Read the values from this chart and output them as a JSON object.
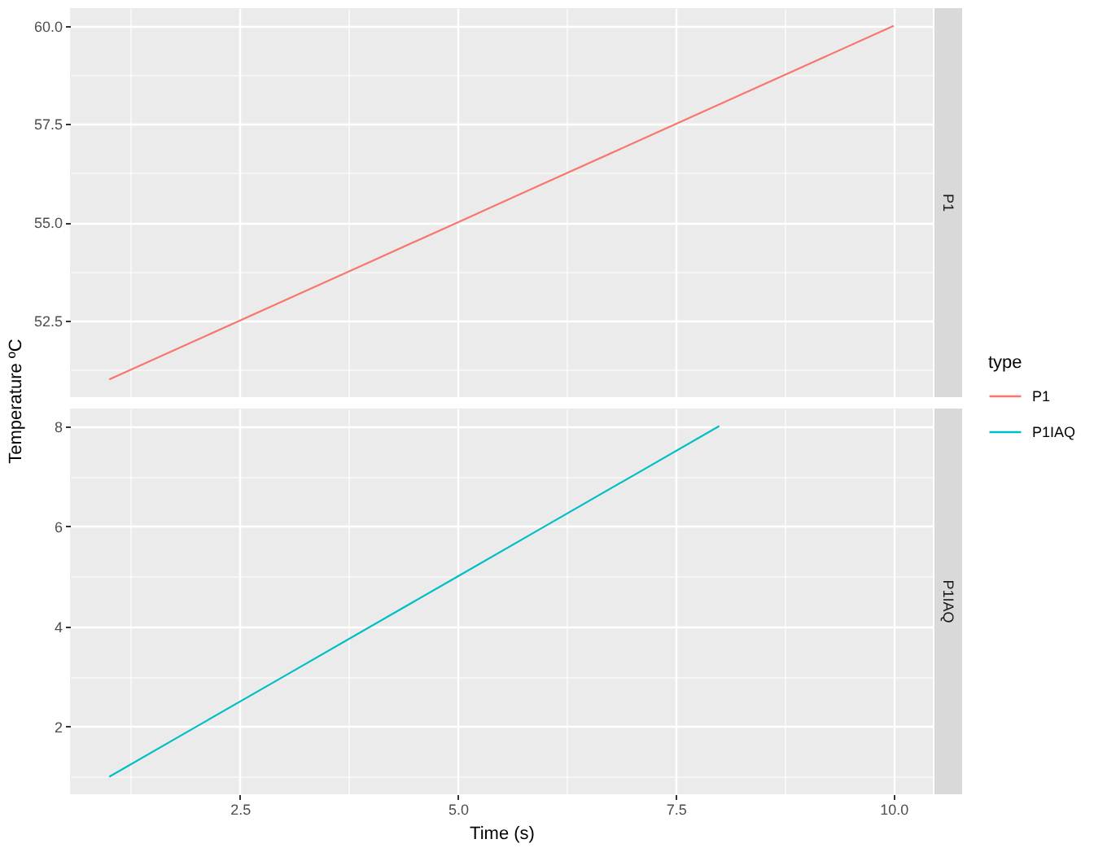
{
  "chart_data": [
    {
      "type": "line",
      "title": "P1",
      "ylabel": "Temperature ºC",
      "legend_title": "type",
      "legend": "right",
      "grid": true,
      "tick_labels": "y",
      "series": [
        {
          "name": "P1",
          "color": "#f8766d",
          "x": [
            1,
            2,
            3,
            4,
            5,
            6,
            7,
            8,
            9,
            10
          ],
          "values": [
            51,
            52,
            53,
            54,
            55,
            56,
            57,
            58,
            59,
            60
          ]
        }
      ],
      "xlim": [
        0.55,
        10.45
      ],
      "ylim": [
        50.55,
        60.45
      ],
      "yticks": [
        52.5,
        {
          "value": 55,
          "label": "55.0"
        },
        57.5,
        {
          "value": 60,
          "label": "60.0"
        }
      ]
    },
    {
      "type": "line",
      "title": "P1IAQ",
      "xlabel": "Time (s)",
      "grid": true,
      "series": [
        {
          "name": "P1IAQ",
          "color": "#00bfc4",
          "x": [
            1,
            2,
            3,
            4,
            5,
            6,
            7,
            8
          ],
          "values": [
            1,
            2,
            3,
            4,
            5,
            6,
            7,
            8
          ]
        }
      ],
      "xlim": [
        0.55,
        10.45
      ],
      "xticks": [
        2.5,
        {
          "value": 5,
          "label": "5.0"
        },
        7.5,
        {
          "value": 10,
          "label": "10.0"
        }
      ],
      "ylim": [
        0.65,
        8.35
      ],
      "yticks": [
        2,
        4,
        6,
        8
      ]
    }
  ]
}
